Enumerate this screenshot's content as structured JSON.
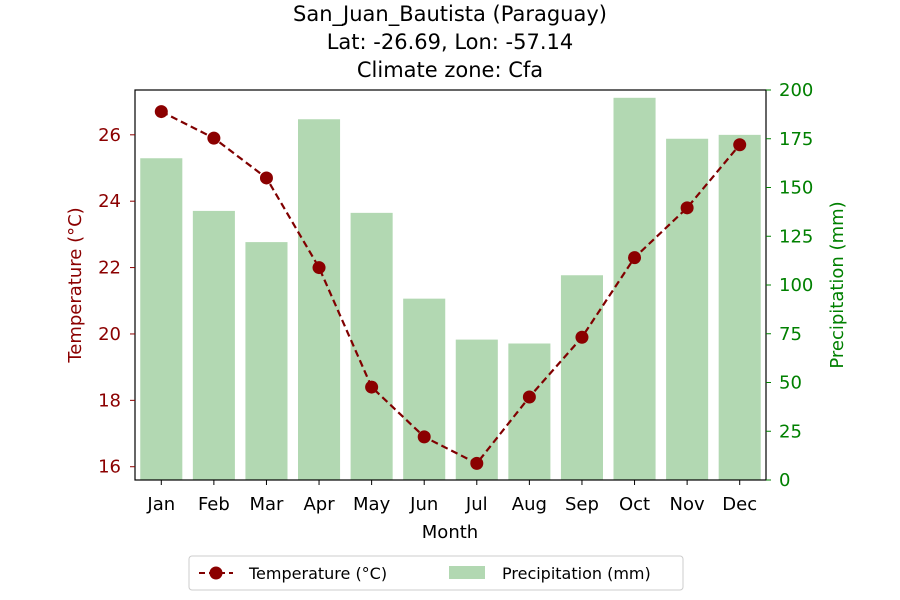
{
  "chart_data": {
    "type": "bar+line",
    "title": [
      "San_Juan_Bautista (Paraguay)",
      "Lat: -26.69, Lon: -57.14",
      "Climate zone: Cfa"
    ],
    "xlabel": "Month",
    "ylabel_left": "Temperature (°C)",
    "ylabel_right": "Precipitation (mm)",
    "categories": [
      "Jan",
      "Feb",
      "Mar",
      "Apr",
      "May",
      "Jun",
      "Jul",
      "Aug",
      "Sep",
      "Oct",
      "Nov",
      "Dec"
    ],
    "series": [
      {
        "name": "Temperature (°C)",
        "type": "line",
        "axis": "left",
        "values": [
          26.7,
          25.9,
          24.7,
          22.0,
          18.4,
          16.9,
          16.1,
          18.1,
          19.9,
          22.3,
          23.8,
          25.7
        ]
      },
      {
        "name": "Precipitation (mm)",
        "type": "bar",
        "axis": "right",
        "values": [
          165,
          138,
          122,
          185,
          137,
          93,
          72,
          70,
          105,
          196,
          175,
          177
        ]
      }
    ],
    "ylim_left": [
      15.6,
      27.35
    ],
    "ylim_right": [
      0,
      200
    ],
    "yticks_left": [
      "16",
      "18",
      "20",
      "22",
      "24",
      "26"
    ],
    "yticks_right": [
      "0",
      "25",
      "50",
      "75",
      "100",
      "125",
      "150",
      "175",
      "200"
    ],
    "grid": false,
    "legend_position": "bottom-center",
    "colors": {
      "temperature": "#800000",
      "temperature_marker": "#8b0000",
      "precipitation": "#b2d8b2",
      "left_axis_text": "#8b0000",
      "right_axis_text": "#008000"
    }
  }
}
